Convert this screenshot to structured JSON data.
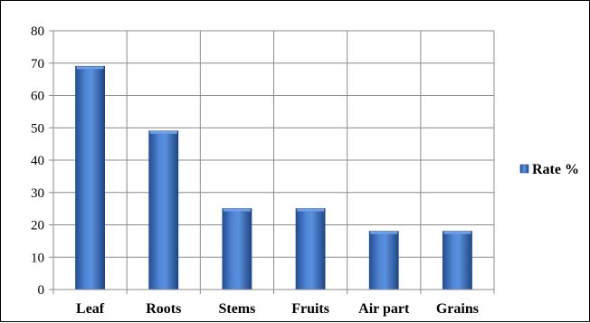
{
  "chart_data": {
    "type": "bar",
    "categories": [
      "Leaf",
      "Roots",
      "Stems",
      "Fruits",
      "Air part",
      "Grains"
    ],
    "series": [
      {
        "name": "Rate %",
        "values": [
          69,
          49,
          25,
          25,
          18,
          18
        ],
        "color": "#3d72c4"
      }
    ],
    "ylim": [
      0,
      80
    ],
    "yticks": [
      0,
      10,
      20,
      30,
      40,
      50,
      60,
      70,
      80
    ],
    "grid": true,
    "legend_position": "right"
  }
}
